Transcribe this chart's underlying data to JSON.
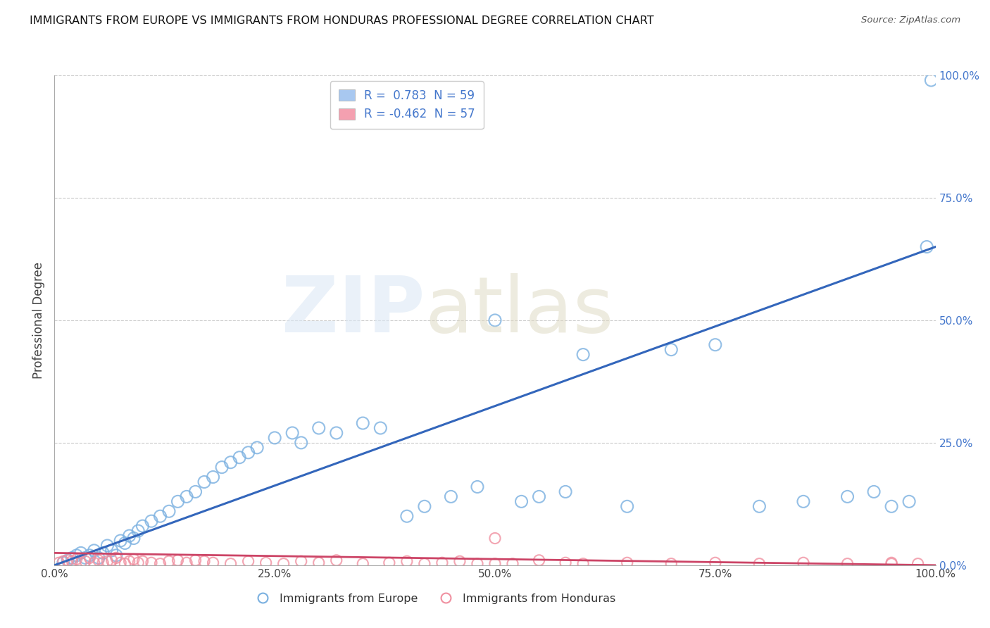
{
  "title": "IMMIGRANTS FROM EUROPE VS IMMIGRANTS FROM HONDURAS PROFESSIONAL DEGREE CORRELATION CHART",
  "source": "Source: ZipAtlas.com",
  "ylabel": "Professional Degree",
  "xlim": [
    0,
    100
  ],
  "ylim": [
    0,
    100
  ],
  "xtick_values": [
    0,
    25,
    50,
    75,
    100
  ],
  "xtick_labels": [
    "0.0%",
    "25.0%",
    "50.0%",
    "75.0%",
    "100.0%"
  ],
  "ytick_values": [
    0,
    25,
    50,
    75,
    100
  ],
  "ytick_right_labels": [
    "0.0%",
    "25.0%",
    "50.0%",
    "75.0%",
    "100.0%"
  ],
  "legend1_label": "R =  0.783  N = 59",
  "legend2_label": "R = -0.462  N = 57",
  "legend1_color": "#a8c8f0",
  "legend2_color": "#f4a0b0",
  "series1_color": "#7ab0e0",
  "series2_color": "#f090a0",
  "line1_color": "#3366bb",
  "line2_color": "#cc4466",
  "europe_x": [
    1.0,
    1.5,
    2.0,
    2.5,
    3.0,
    3.5,
    4.0,
    4.5,
    5.0,
    5.5,
    6.0,
    6.5,
    7.0,
    7.5,
    8.0,
    8.5,
    9.0,
    9.5,
    10.0,
    11.0,
    12.0,
    13.0,
    14.0,
    15.0,
    16.0,
    17.0,
    18.0,
    19.0,
    20.0,
    21.0,
    22.0,
    23.0,
    25.0,
    27.0,
    28.0,
    30.0,
    32.0,
    35.0,
    37.0,
    40.0,
    42.0,
    45.0,
    48.0,
    50.0,
    53.0,
    55.0,
    58.0,
    60.0,
    65.0,
    70.0,
    75.0,
    80.0,
    85.0,
    90.0,
    93.0,
    95.0,
    97.0,
    99.0,
    99.5
  ],
  "europe_y": [
    0.5,
    1.0,
    1.5,
    2.0,
    2.5,
    1.5,
    2.0,
    3.0,
    1.5,
    2.5,
    4.0,
    3.0,
    2.0,
    5.0,
    4.5,
    6.0,
    5.5,
    7.0,
    8.0,
    9.0,
    10.0,
    11.0,
    13.0,
    14.0,
    15.0,
    17.0,
    18.0,
    20.0,
    21.0,
    22.0,
    23.0,
    24.0,
    26.0,
    27.0,
    25.0,
    28.0,
    27.0,
    29.0,
    28.0,
    10.0,
    12.0,
    14.0,
    16.0,
    50.0,
    13.0,
    14.0,
    15.0,
    43.0,
    12.0,
    44.0,
    45.0,
    12.0,
    13.0,
    14.0,
    15.0,
    12.0,
    13.0,
    65.0,
    99.0
  ],
  "honduras_x": [
    0.5,
    1.0,
    1.5,
    2.0,
    2.5,
    3.0,
    3.5,
    4.0,
    4.5,
    5.0,
    5.5,
    6.0,
    6.5,
    7.0,
    7.5,
    8.0,
    8.5,
    9.0,
    9.5,
    10.0,
    11.0,
    12.0,
    13.0,
    14.0,
    15.0,
    16.0,
    17.0,
    18.0,
    20.0,
    22.0,
    24.0,
    26.0,
    28.0,
    30.0,
    32.0,
    35.0,
    38.0,
    40.0,
    42.0,
    44.0,
    46.0,
    48.0,
    50.0,
    52.0,
    55.0,
    58.0,
    60.0,
    65.0,
    70.0,
    75.0,
    80.0,
    85.0,
    90.0,
    95.0,
    98.0,
    50.0,
    95.0
  ],
  "honduras_y": [
    0.5,
    0.8,
    1.0,
    0.8,
    1.2,
    0.5,
    0.8,
    1.5,
    0.5,
    1.0,
    0.5,
    0.8,
    1.0,
    1.5,
    0.5,
    0.3,
    0.8,
    1.2,
    0.5,
    0.8,
    0.5,
    0.3,
    0.8,
    1.0,
    0.5,
    1.0,
    0.8,
    0.5,
    0.3,
    0.8,
    0.5,
    0.3,
    0.8,
    0.5,
    1.0,
    0.3,
    0.5,
    0.8,
    0.3,
    0.5,
    0.8,
    0.3,
    5.5,
    0.3,
    1.0,
    0.5,
    0.3,
    0.5,
    0.3,
    0.5,
    0.3,
    0.5,
    0.3,
    0.5,
    0.3,
    0.3,
    0.3
  ],
  "line1_x": [
    0,
    100
  ],
  "line1_y": [
    0,
    65
  ],
  "line2_x": [
    0,
    100
  ],
  "line2_y": [
    2.5,
    0
  ],
  "grid_color": "#cccccc",
  "right_tick_color": "#4477cc",
  "bottom_legend_labels": [
    "Immigrants from Europe",
    "Immigrants from Honduras"
  ]
}
